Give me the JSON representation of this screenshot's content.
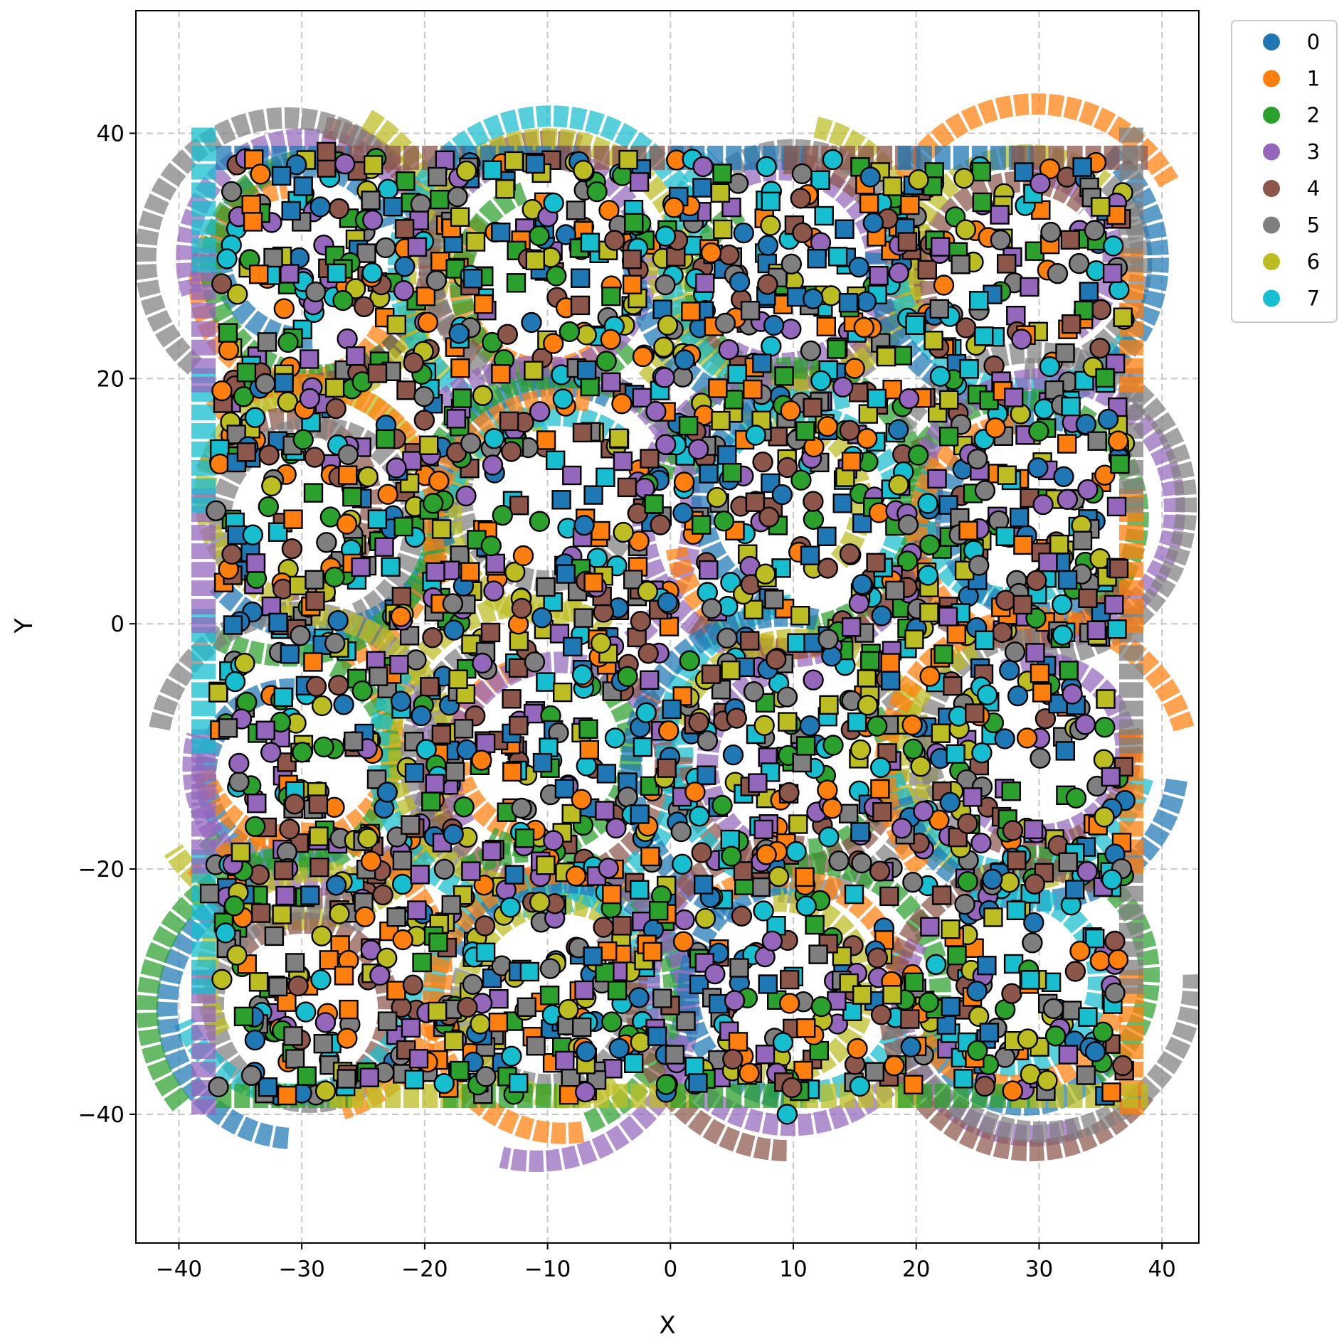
{
  "chart_data": {
    "type": "scatter",
    "title": "",
    "xlabel": "X",
    "ylabel": "Y",
    "xlim": [
      -43.5,
      43
    ],
    "ylim": [
      -50.5,
      50
    ],
    "xticks": [
      -40,
      -30,
      -20,
      -10,
      0,
      10,
      20,
      30,
      40
    ],
    "yticks": [
      -40,
      -20,
      0,
      20,
      40
    ],
    "grid": true,
    "legend_position": "outside-top-right",
    "marker_shapes": [
      "circle",
      "square"
    ],
    "point_cloud_extent": {
      "x": [
        -37,
        37
      ],
      "y": [
        -40,
        38.5
      ]
    },
    "swirl_trails": {
      "description_shown": "dense curved arrow trails behind markers",
      "centers": [
        [
          -30,
          29
        ],
        [
          -10,
          29
        ],
        [
          10,
          29
        ],
        [
          29,
          29
        ],
        [
          -30,
          9
        ],
        [
          -10,
          9
        ],
        [
          10,
          9
        ],
        [
          29,
          9
        ],
        [
          -30,
          -11
        ],
        [
          -10,
          -11
        ],
        [
          10,
          -11
        ],
        [
          29,
          -11
        ],
        [
          -30,
          -30
        ],
        [
          -10,
          -30
        ],
        [
          10,
          -30
        ],
        [
          29,
          -30
        ]
      ],
      "radius": 10
    },
    "series": [
      {
        "name": "0",
        "color": "#1f77b4",
        "seed": 11,
        "count": 300
      },
      {
        "name": "1",
        "color": "#ff7f0e",
        "seed": 23,
        "count": 300
      },
      {
        "name": "2",
        "color": "#2ca02c",
        "seed": 37,
        "count": 300
      },
      {
        "name": "3",
        "color": "#9467bd",
        "seed": 41,
        "count": 300
      },
      {
        "name": "4",
        "color": "#8c564b",
        "seed": 53,
        "count": 300
      },
      {
        "name": "5",
        "color": "#7f7f7f",
        "seed": 67,
        "count": 300
      },
      {
        "name": "6",
        "color": "#bcbd22",
        "seed": 79,
        "count": 300
      },
      {
        "name": "7",
        "color": "#17becf",
        "seed": 83,
        "count": 300
      }
    ],
    "sample_points": [
      {
        "series": "0",
        "x": -28.5,
        "y": 34,
        "shape": "circle"
      },
      {
        "series": "0",
        "x": -11,
        "y": 37.5,
        "shape": "square"
      },
      {
        "series": "0",
        "x": 32,
        "y": 12,
        "shape": "circle"
      },
      {
        "series": "1",
        "x": -36.5,
        "y": 19,
        "shape": "circle"
      },
      {
        "series": "1",
        "x": -33.5,
        "y": 28.5,
        "shape": "square"
      },
      {
        "series": "2",
        "x": -34.5,
        "y": 20.5,
        "shape": "square"
      },
      {
        "series": "2",
        "x": -35.5,
        "y": -23,
        "shape": "circle"
      },
      {
        "series": "3",
        "x": -26.5,
        "y": 37.5,
        "shape": "circle"
      },
      {
        "series": "3",
        "x": -24.5,
        "y": -37,
        "shape": "square"
      },
      {
        "series": "4",
        "x": -28,
        "y": 38.5,
        "shape": "square"
      },
      {
        "series": "4",
        "x": -34.5,
        "y": 14,
        "shape": "square"
      },
      {
        "series": "5",
        "x": -37.5,
        "y": -22,
        "shape": "square"
      },
      {
        "series": "5",
        "x": -36,
        "y": -8.5,
        "shape": "square"
      },
      {
        "series": "6",
        "x": -36.5,
        "y": -29,
        "shape": "circle"
      },
      {
        "series": "6",
        "x": 35,
        "y": 34,
        "shape": "square"
      },
      {
        "series": "7",
        "x": 9.5,
        "y": -40,
        "shape": "circle"
      },
      {
        "series": "7",
        "x": -14.5,
        "y": 37,
        "shape": "square"
      }
    ]
  }
}
